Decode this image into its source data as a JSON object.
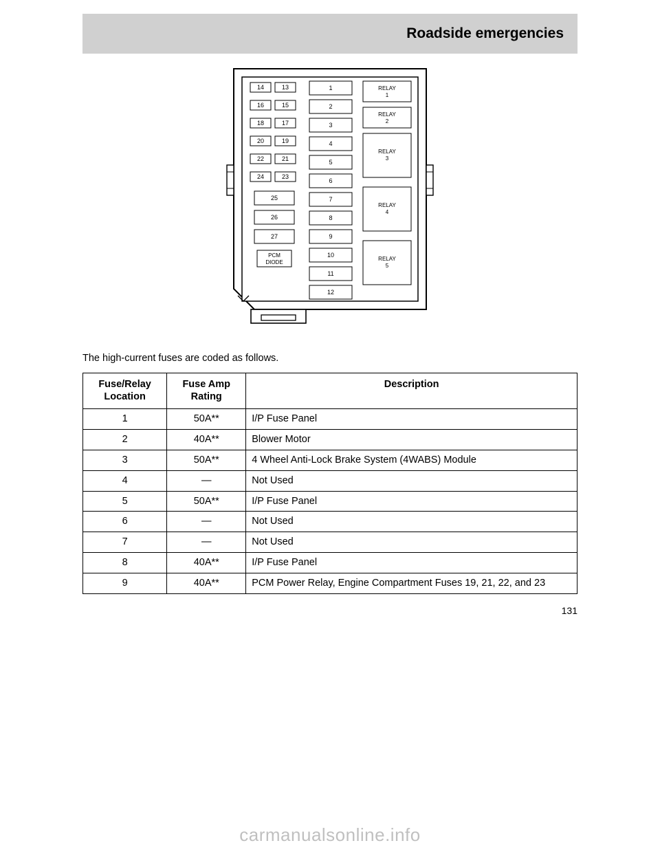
{
  "header": {
    "title": "Roadside emergencies"
  },
  "diagram": {
    "stroke": "#000000",
    "fill": "#ffffff",
    "mini_fuses_left_col": [
      "14",
      "16",
      "18",
      "20",
      "22",
      "24"
    ],
    "mini_fuses_right_col": [
      "13",
      "15",
      "17",
      "19",
      "21",
      "23"
    ],
    "maxi_left": [
      "25",
      "26",
      "27"
    ],
    "pcm_label_top": "PCM",
    "pcm_label_bottom": "DIODE",
    "center_fuses": [
      "1",
      "2",
      "3",
      "4",
      "5",
      "6",
      "7",
      "8",
      "9",
      "10",
      "11",
      "12"
    ],
    "relays": [
      "RELAY",
      "RELAY",
      "RELAY",
      "RELAY",
      "RELAY"
    ],
    "relay_nums": [
      "1",
      "2",
      "3",
      "4",
      "5"
    ]
  },
  "caption_line1": "The high-current fuses are coded as follows.",
  "table": {
    "headers": [
      "Fuse/Relay\nLocation",
      "Fuse Amp\nRating",
      "Description"
    ],
    "col_widths": [
      "17%",
      "16%",
      "67%"
    ],
    "rows": [
      [
        "1",
        "50A**",
        "I/P Fuse Panel"
      ],
      [
        "2",
        "40A**",
        "Blower Motor"
      ],
      [
        "3",
        "50A**",
        "4 Wheel Anti-Lock Brake System (4WABS) Module"
      ],
      [
        "4",
        "—",
        "Not Used"
      ],
      [
        "5",
        "50A**",
        "I/P Fuse Panel"
      ],
      [
        "6",
        "—",
        "Not Used"
      ],
      [
        "7",
        "—",
        "Not Used"
      ],
      [
        "8",
        "40A**",
        "I/P Fuse Panel"
      ],
      [
        "9",
        "40A**",
        "PCM Power Relay, Engine Compartment Fuses 19, 21, 22, and 23"
      ]
    ]
  },
  "page_number": "131",
  "watermark": "carmanualsonline.info"
}
